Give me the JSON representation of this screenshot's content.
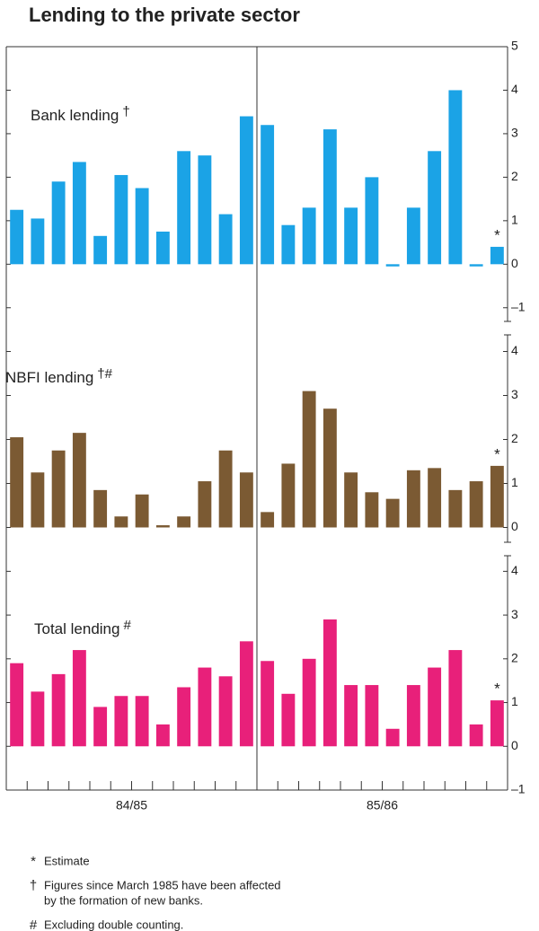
{
  "title": "Lending to the private sector",
  "x_groups": [
    "84/85",
    "85/86"
  ],
  "chart_data": [
    {
      "type": "bar",
      "title": "Bank lending",
      "title_mark": "†",
      "annotation": "*",
      "color": "#1ba3e6",
      "categories": [
        null,
        null,
        null,
        null,
        null,
        null,
        null,
        null,
        null,
        null,
        null,
        null,
        null,
        null,
        null,
        null,
        null,
        null,
        null,
        null,
        null,
        null,
        null,
        null
      ],
      "values": [
        1.25,
        1.05,
        1.9,
        2.35,
        0.65,
        2.05,
        1.75,
        0.75,
        2.6,
        2.5,
        1.15,
        3.4,
        3.2,
        0.9,
        1.3,
        3.1,
        1.3,
        2.0,
        -0.05,
        1.3,
        2.6,
        4.0,
        -0.05,
        0.4
      ],
      "ylim": [
        -1.5,
        5
      ],
      "yticks": [
        {
          "value": -1,
          "label": "–1"
        },
        0,
        1,
        2,
        3,
        4,
        5
      ]
    },
    {
      "type": "bar",
      "title": "NBFI lending",
      "title_mark": "†#",
      "annotation": "*",
      "color": "#7b5a33",
      "categories": [
        null,
        null,
        null,
        null,
        null,
        null,
        null,
        null,
        null,
        null,
        null,
        null,
        null,
        null,
        null,
        null,
        null,
        null,
        null,
        null,
        null,
        null,
        null,
        null
      ],
      "values": [
        2.05,
        1.25,
        1.75,
        2.15,
        0.85,
        0.25,
        0.75,
        0.05,
        0.25,
        1.05,
        1.75,
        1.25,
        0.35,
        1.45,
        3.1,
        2.7,
        1.25,
        0.8,
        0.65,
        1.3,
        1.35,
        0.85,
        1.05,
        1.4
      ],
      "ylim": [
        -0.5,
        4.5
      ],
      "yticks": [
        0,
        1,
        2,
        3,
        4
      ]
    },
    {
      "type": "bar",
      "title": "Total lending",
      "title_mark": "#",
      "annotation": "*",
      "color": "#e8207a",
      "categories": [
        null,
        null,
        null,
        null,
        null,
        null,
        null,
        null,
        null,
        null,
        null,
        null,
        null,
        null,
        null,
        null,
        null,
        null,
        null,
        null,
        null,
        null,
        null,
        null
      ],
      "values": [
        1.9,
        1.25,
        1.65,
        2.2,
        0.9,
        1.15,
        1.15,
        0.5,
        1.35,
        1.8,
        1.6,
        2.4,
        1.95,
        1.2,
        2.0,
        2.9,
        1.4,
        1.4,
        0.4,
        1.4,
        1.8,
        2.2,
        0.5,
        1.05
      ],
      "ylim": [
        -1,
        4.5
      ],
      "yticks": [
        {
          "value": -1,
          "label": "–1"
        },
        0,
        1,
        2,
        3,
        4
      ]
    }
  ],
  "notes": [
    {
      "symbol": "*",
      "lines": [
        "Estimate"
      ]
    },
    {
      "symbol": "†",
      "lines": [
        "Figures since March 1985 have been affected",
        "by the formation of new banks."
      ]
    },
    {
      "symbol": "#",
      "lines": [
        "Excluding double counting."
      ]
    }
  ]
}
